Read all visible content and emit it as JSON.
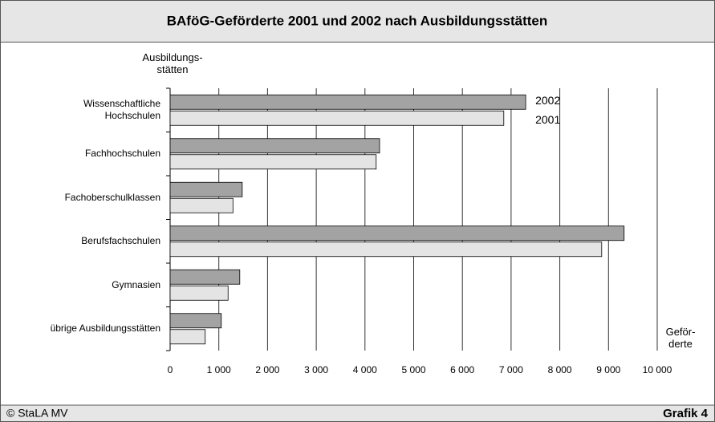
{
  "chart_data": {
    "type": "barh",
    "title": "BAföG-Geförderte 2001 und 2002 nach Ausbildungsstätten",
    "ylabel": "Ausbildungs-\nstätten",
    "xlabel": "Geför-\nderte",
    "categories": [
      "Wissenschaftliche\nHochschulen",
      "Fachhochschulen",
      "Fachoberschulklassen",
      "Berufsfachschulen",
      "Gymnasien",
      "übrige Ausbildungsstätten"
    ],
    "series": [
      {
        "name": "2002",
        "color": "#a3a3a3",
        "values": [
          7300,
          4300,
          1480,
          9320,
          1430,
          1050
        ]
      },
      {
        "name": "2001",
        "color": "#e4e4e4",
        "values": [
          6850,
          4230,
          1290,
          8860,
          1190,
          720
        ]
      }
    ],
    "xlim": [
      0,
      10000
    ],
    "xticks": [
      0,
      {
        "value": 1000,
        "label": "1 000"
      },
      {
        "value": 2000,
        "label": "2 000"
      },
      {
        "value": 3000,
        "label": "3 000"
      },
      {
        "value": 4000,
        "label": "4 000"
      },
      {
        "value": 5000,
        "label": "5 000"
      },
      {
        "value": 6000,
        "label": "6 000"
      },
      {
        "value": 7000,
        "label": "7 000"
      },
      {
        "value": 8000,
        "label": "8 000"
      },
      {
        "value": 9000,
        "label": "9 000"
      },
      {
        "value": 10000,
        "label": "10 000"
      }
    ],
    "grid": true,
    "source": "© StaLA MV",
    "figure_label": "Grafik 4"
  }
}
